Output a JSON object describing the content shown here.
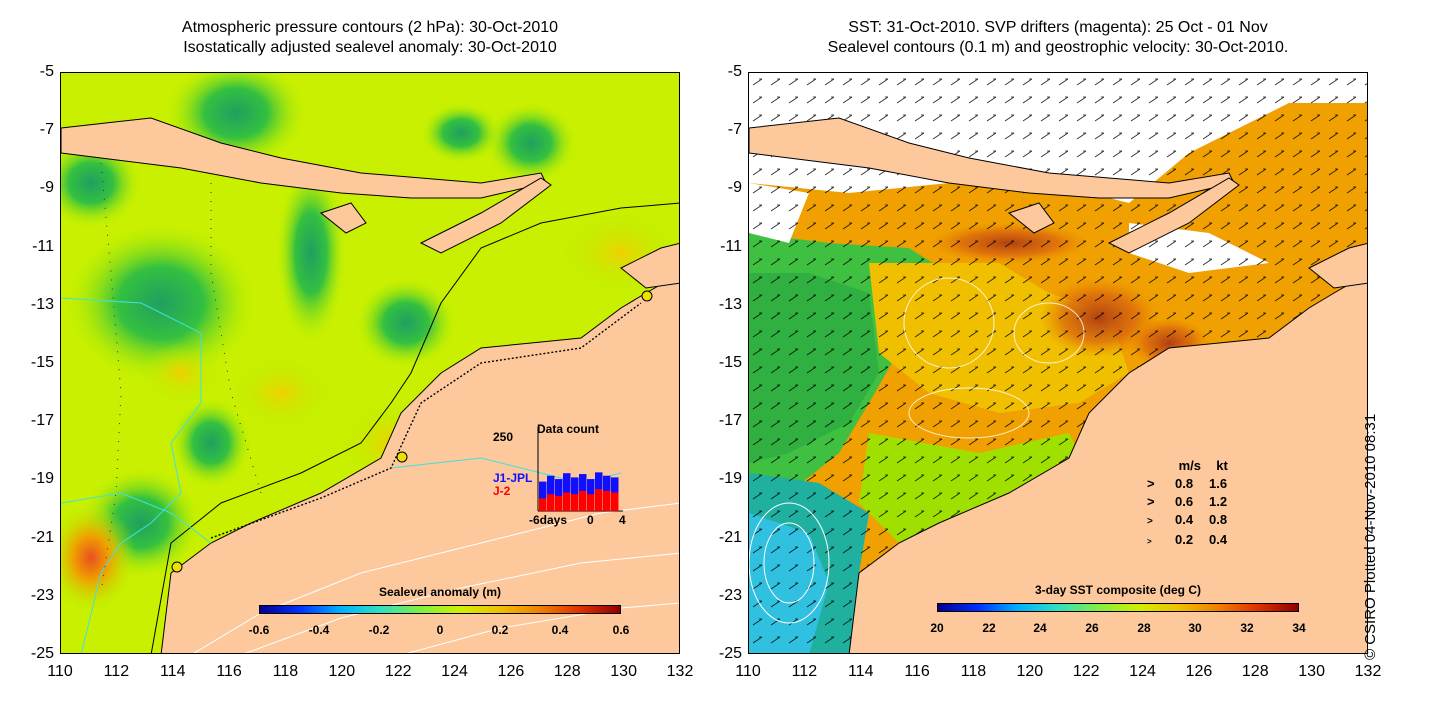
{
  "left": {
    "title_line1": "Atmospheric pressure contours (2 hPa): 30-Oct-2010",
    "title_line2": "Isostatically adjusted sealevel anomaly: 30-Oct-2010",
    "colorbar_title": "Sealevel anomaly (m)",
    "colorbar_ticks": [
      "-0.6",
      "-0.4",
      "-0.2",
      "0",
      "0.2",
      "0.4",
      "0.6"
    ],
    "data_count": {
      "title": "Data count",
      "ymax_label": "250",
      "label_j1": "J1-JPL",
      "label_j2": "J-2",
      "x_labels": [
        "-6days",
        "0",
        "4"
      ],
      "j1_color": "#1010ff",
      "j2_color": "#ff0000"
    }
  },
  "right": {
    "title_line1": "SST: 31-Oct-2010. SVP drifters (magenta): 25 Oct - 01 Nov",
    "title_line2": "Sealevel contours (0.1 m) and geostrophic velocity: 30-Oct-2010.",
    "colorbar_title": "3-day SST composite (deg C)",
    "colorbar_ticks": [
      "20",
      "22",
      "24",
      "26",
      "28",
      "30",
      "32",
      "34"
    ],
    "vector_legend": {
      "header_ms": "m/s",
      "header_kt": "kt",
      "rows": [
        {
          "ms": "0.8",
          "kt": "1.6"
        },
        {
          "ms": "0.6",
          "kt": "1.2"
        },
        {
          "ms": "0.4",
          "kt": "0.8"
        },
        {
          "ms": "0.2",
          "kt": "0.4"
        }
      ]
    }
  },
  "y_ticks": [
    "-5",
    "-7",
    "-9",
    "-11",
    "-13",
    "-15",
    "-17",
    "-19",
    "-21",
    "-23",
    "-25"
  ],
  "x_ticks": [
    "110",
    "112",
    "114",
    "116",
    "118",
    "120",
    "122",
    "124",
    "126",
    "128",
    "130",
    "132"
  ],
  "credit": "© CSIRO Plotted 04-Nov-2010 08:31",
  "colors": {
    "land": "#fcc89c",
    "ocean_green": "#b6f000",
    "coast": "#000000",
    "contour_cyan": "#40e0e0"
  }
}
